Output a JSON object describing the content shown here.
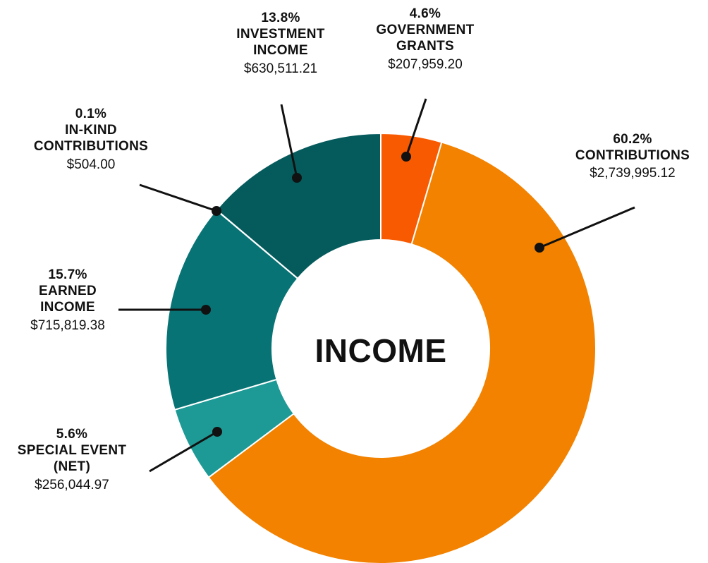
{
  "chart_data": {
    "type": "pie",
    "title": "INCOME",
    "slices": [
      {
        "label": "GOVERNMENT GRANTS",
        "percent": "4.6%",
        "value": 207959.2,
        "amount": "$207,959.20",
        "color": "#f75a00"
      },
      {
        "label": "CONTRIBUTIONS",
        "percent": "60.2%",
        "value": 2739995.12,
        "amount": "$2,739,995.12",
        "color": "#f28200"
      },
      {
        "label": "SPECIAL EVENT (NET)",
        "percent": "5.6%",
        "value": 256044.97,
        "amount": "$256,044.97",
        "color": "#1e9a96"
      },
      {
        "label": "EARNED INCOME",
        "percent": "15.7%",
        "value": 715819.38,
        "amount": "$715,819.38",
        "color": "#087374"
      },
      {
        "label": "IN-KIND CONTRIBUTIONS",
        "percent": "0.1%",
        "value": 504.0,
        "amount": "$504.00",
        "color": "#064f52"
      },
      {
        "label": "INVESTMENT INCOME",
        "percent": "13.8%",
        "value": 630511.21,
        "amount": "$630,511.21",
        "color": "#055a5c"
      }
    ]
  }
}
